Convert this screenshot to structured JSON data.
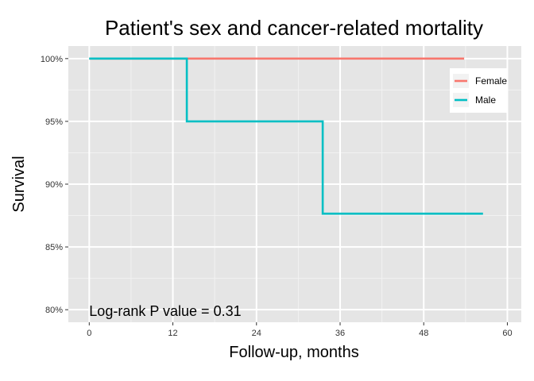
{
  "chart_data": {
    "type": "line",
    "subtype": "step",
    "title": "Patient's sex and cancer-related mortality",
    "xlabel": "Follow-up, months",
    "ylabel": "Survival",
    "xlim": [
      -3,
      62
    ],
    "ylim": [
      0.79,
      1.01
    ],
    "x_ticks": [
      0,
      12,
      24,
      36,
      48,
      60
    ],
    "x_tick_labels": [
      "0",
      "12",
      "24",
      "36",
      "48",
      "60"
    ],
    "y_ticks": [
      0.8,
      0.85,
      0.9,
      0.95,
      1.0
    ],
    "y_tick_labels": [
      "80%",
      "85%",
      "90%",
      "95%",
      "100%"
    ],
    "grid": true,
    "legend_position": "top-right",
    "series": [
      {
        "name": "Female",
        "color": "#F8766D",
        "points": [
          [
            0,
            1.0
          ],
          [
            53.8,
            1.0
          ]
        ]
      },
      {
        "name": "Male",
        "color": "#00BFC4",
        "points": [
          [
            0,
            1.0
          ],
          [
            14,
            1.0
          ],
          [
            14,
            0.95
          ],
          [
            33.5,
            0.95
          ],
          [
            33.5,
            0.8765
          ],
          [
            56.5,
            0.8765
          ]
        ]
      }
    ],
    "annotation": {
      "text": "Log-rank P value = 0.31",
      "x": 0,
      "y": 0.8
    }
  }
}
